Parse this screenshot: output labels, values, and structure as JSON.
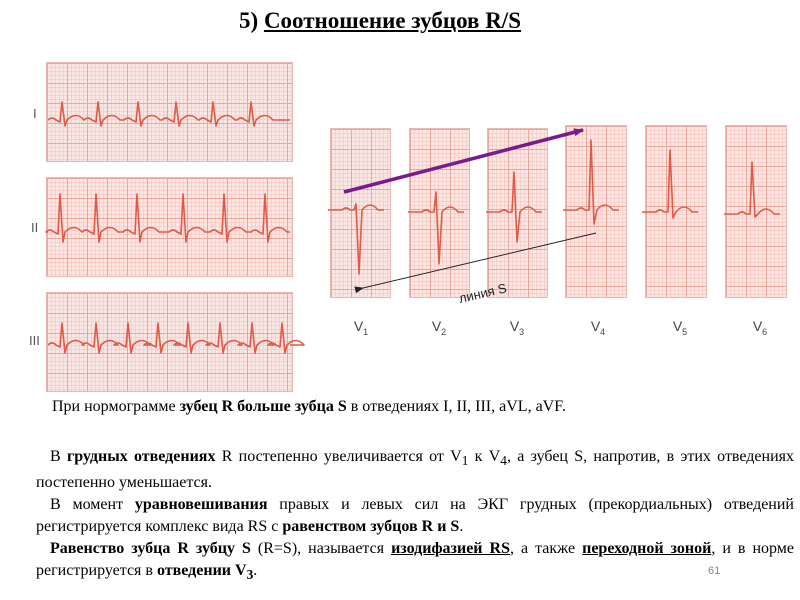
{
  "title": {
    "number": "5)",
    "text": "Соотношение зубцов R/S"
  },
  "limb_leads": [
    "I",
    "II",
    "III"
  ],
  "chest_leads": [
    {
      "letter": "V",
      "sub": "1"
    },
    {
      "letter": "V",
      "sub": "2"
    },
    {
      "letter": "V",
      "sub": "3"
    },
    {
      "letter": "V",
      "sub": "4"
    },
    {
      "letter": "V",
      "sub": "5"
    },
    {
      "letter": "V",
      "sub": "6"
    }
  ],
  "colors": {
    "trace": "#e05a47",
    "arrow_r": "#7a1a8c",
    "grid": "#e9a89e"
  },
  "annotation": "линия  S",
  "paragraphs": {
    "p1": {
      "a": "При нормограмме ",
      "b": "зубец R больше зубца S",
      "c": " в отведениях I, II, III, aVL, aVF."
    },
    "p2": {
      "a": "В ",
      "b": "грудных отведениях",
      "c": " R постепенно увеличивается от V",
      "s1": "1",
      "d": "  к V",
      "s2": "4",
      "e": ", а зубец S, напротив, в этих отведениях постепенно уменьшается."
    },
    "p3": {
      "a": "В момент ",
      "b": "уравновешивания",
      "c": " правых и левых сил на ЭКГ грудных (прекордиальных) отведений регистрируется комплекс вида RS с ",
      "d": "равенством зубцов R и S",
      "e": "."
    },
    "p4": {
      "a": "Равенство зубца R зубцу S",
      "b": " (R=S), называется ",
      "c": "изодифазией RS",
      "d": ", а также ",
      "e": "переходной зоной",
      "f": ", и в норме регистрируется в ",
      "g": "отведении V",
      "s": "3",
      "h": "."
    }
  },
  "page_number": "61"
}
